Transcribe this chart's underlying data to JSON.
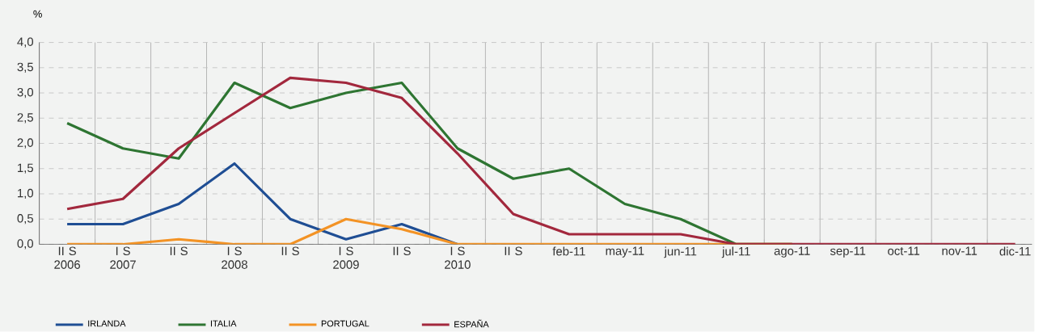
{
  "chart_data": {
    "type": "line",
    "ylabel": "%",
    "categories": [
      "II S 2006",
      "I S 2007",
      "II S",
      "I S 2008",
      "II S",
      "I S 2009",
      "II S",
      "I S 2010",
      "II S",
      "feb-11",
      "may-11",
      "jun-11",
      "jul-11",
      "ago-11",
      "sep-11",
      "oct-11",
      "nov-11",
      "dic-11"
    ],
    "series": [
      {
        "name": "IRLANDA",
        "color": "#1f4e94",
        "values": [
          0.4,
          0.4,
          0.8,
          1.6,
          0.5,
          0.1,
          0.4,
          0,
          null,
          null,
          null,
          null,
          null,
          null,
          null,
          null,
          null,
          null
        ]
      },
      {
        "name": "ITALIA",
        "color": "#2e7532",
        "values": [
          2.4,
          1.9,
          1.7,
          3.2,
          2.7,
          3.0,
          3.2,
          1.9,
          1.3,
          1.5,
          0.8,
          0.5,
          0,
          0,
          null,
          null,
          null,
          null
        ]
      },
      {
        "name": "PORTUGAL",
        "color": "#f39325",
        "values": [
          0,
          0,
          0.1,
          0,
          0,
          0.5,
          0.3,
          0,
          0,
          0,
          0,
          0,
          0,
          0,
          null,
          null,
          null,
          null
        ]
      },
      {
        "name": "ESPAÑA",
        "color": "#a2283d",
        "values": [
          0.7,
          0.9,
          1.9,
          2.6,
          3.3,
          3.2,
          2.9,
          1.8,
          0.6,
          0.2,
          0.2,
          0.2,
          0,
          0,
          0,
          0,
          0,
          0
        ]
      }
    ],
    "ylim": [
      0,
      4
    ],
    "yticks": [
      {
        "value": 0,
        "label": "0,0"
      },
      {
        "value": 0.5,
        "label": "0,5"
      },
      {
        "value": 1,
        "label": "1,0"
      },
      {
        "value": 1.5,
        "label": "1,5"
      },
      {
        "value": 2,
        "label": "2,0"
      },
      {
        "value": 2.5,
        "label": "2,5"
      },
      {
        "value": 3,
        "label": "3,0"
      },
      {
        "value": 3.5,
        "label": "3,5"
      },
      {
        "value": 4,
        "label": "4,0"
      }
    ],
    "grid": true,
    "legend": "bottom",
    "marker": "none",
    "line_style": "solid"
  }
}
